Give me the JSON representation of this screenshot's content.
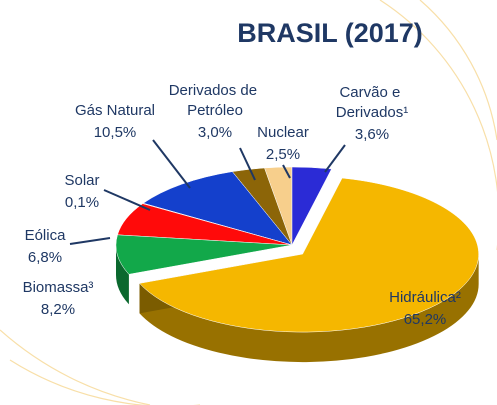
{
  "chart_data": {
    "type": "pie",
    "title": "BRASIL (2017)",
    "categories": [
      "Carvão e Derivados¹",
      "Hidráulica²",
      "Biomassa³",
      "Eólica",
      "Solar",
      "Gás Natural",
      "Derivados de Petróleo",
      "Nuclear"
    ],
    "values": [
      3.6,
      65.2,
      8.2,
      6.8,
      0.1,
      10.5,
      3.0,
      2.5
    ],
    "value_labels": [
      "3,6%",
      "65,2%",
      "8,2%",
      "6,8%",
      "0,1%",
      "10,5%",
      "3,0%",
      "2,5%"
    ],
    "colors": [
      "#2b2bd6",
      "#f5b700",
      "#12a84a",
      "#ff0a0a",
      "#6fa3dc",
      "#1440cc",
      "#8c6508",
      "#f7cf8c"
    ]
  }
}
